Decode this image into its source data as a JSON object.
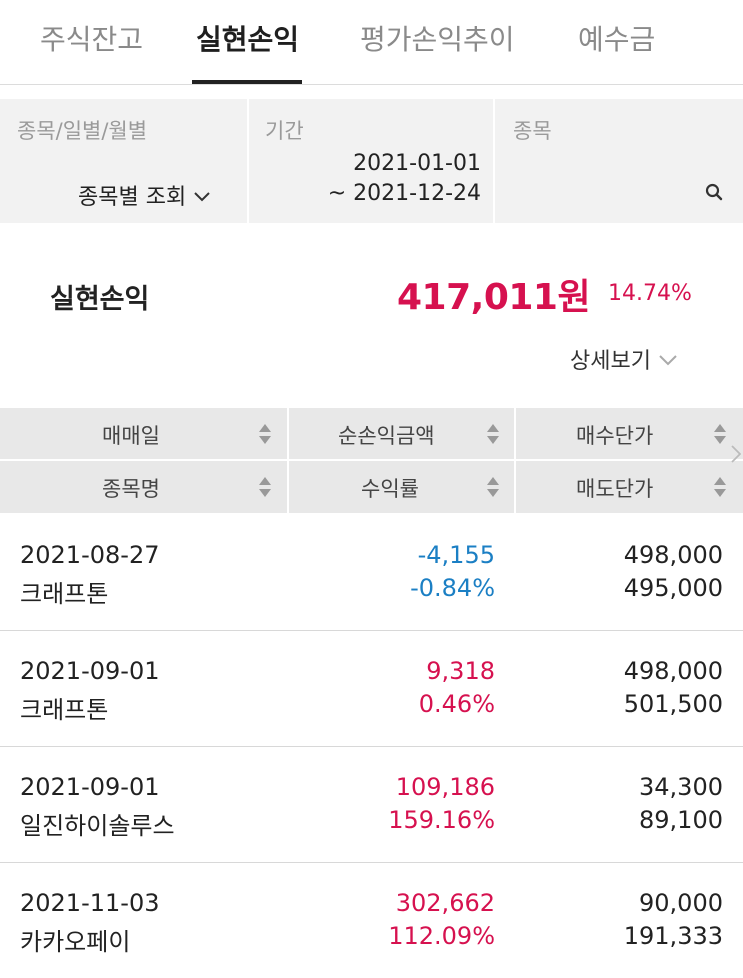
{
  "tabs": [
    {
      "label": "주식잔고",
      "active": false
    },
    {
      "label": "실현손익",
      "active": true
    },
    {
      "label": "평가손익추이",
      "active": false
    },
    {
      "label": "예수금",
      "active": false
    }
  ],
  "filters": {
    "type_label": "종목/일별/월별",
    "type_value": "종목별 조회",
    "period_label": "기간",
    "period_start": "2021-01-01",
    "period_end": "~ 2021-12-24",
    "stock_label": "종목",
    "stock_value": ""
  },
  "summary": {
    "label": "실현손익",
    "amount": "417,011원",
    "percent": "14.74%",
    "detail_label": "상세보기"
  },
  "table": {
    "headers": {
      "col1_top": "매매일",
      "col1_bottom": "종목명",
      "col2_top": "순손익금액",
      "col2_bottom": "수익률",
      "col3_top": "매수단가",
      "col3_bottom": "매도단가"
    },
    "rows": [
      {
        "date": "2021-08-27",
        "name": "크래프톤",
        "profit": "-4,155",
        "rate": "-0.84%",
        "buy": "498,000",
        "sell": "495,000",
        "sign": "negative"
      },
      {
        "date": "2021-09-01",
        "name": "크래프톤",
        "profit": "9,318",
        "rate": "0.46%",
        "buy": "498,000",
        "sell": "501,500",
        "sign": "positive"
      },
      {
        "date": "2021-09-01",
        "name": "일진하이솔루스",
        "profit": "109,186",
        "rate": "159.16%",
        "buy": "34,300",
        "sell": "89,100",
        "sign": "positive"
      },
      {
        "date": "2021-11-03",
        "name": "카카오페이",
        "profit": "302,662",
        "rate": "112.09%",
        "buy": "90,000",
        "sell": "191,333",
        "sign": "positive"
      }
    ]
  },
  "colors": {
    "positive": "#d6114f",
    "negative": "#1b7fc4",
    "header_bg": "#e8e8e8",
    "filter_bg": "#f2f2f2"
  },
  "icons": {
    "search": "search-icon",
    "chevron": "chevron-down-icon",
    "sort": "sort-icon"
  }
}
